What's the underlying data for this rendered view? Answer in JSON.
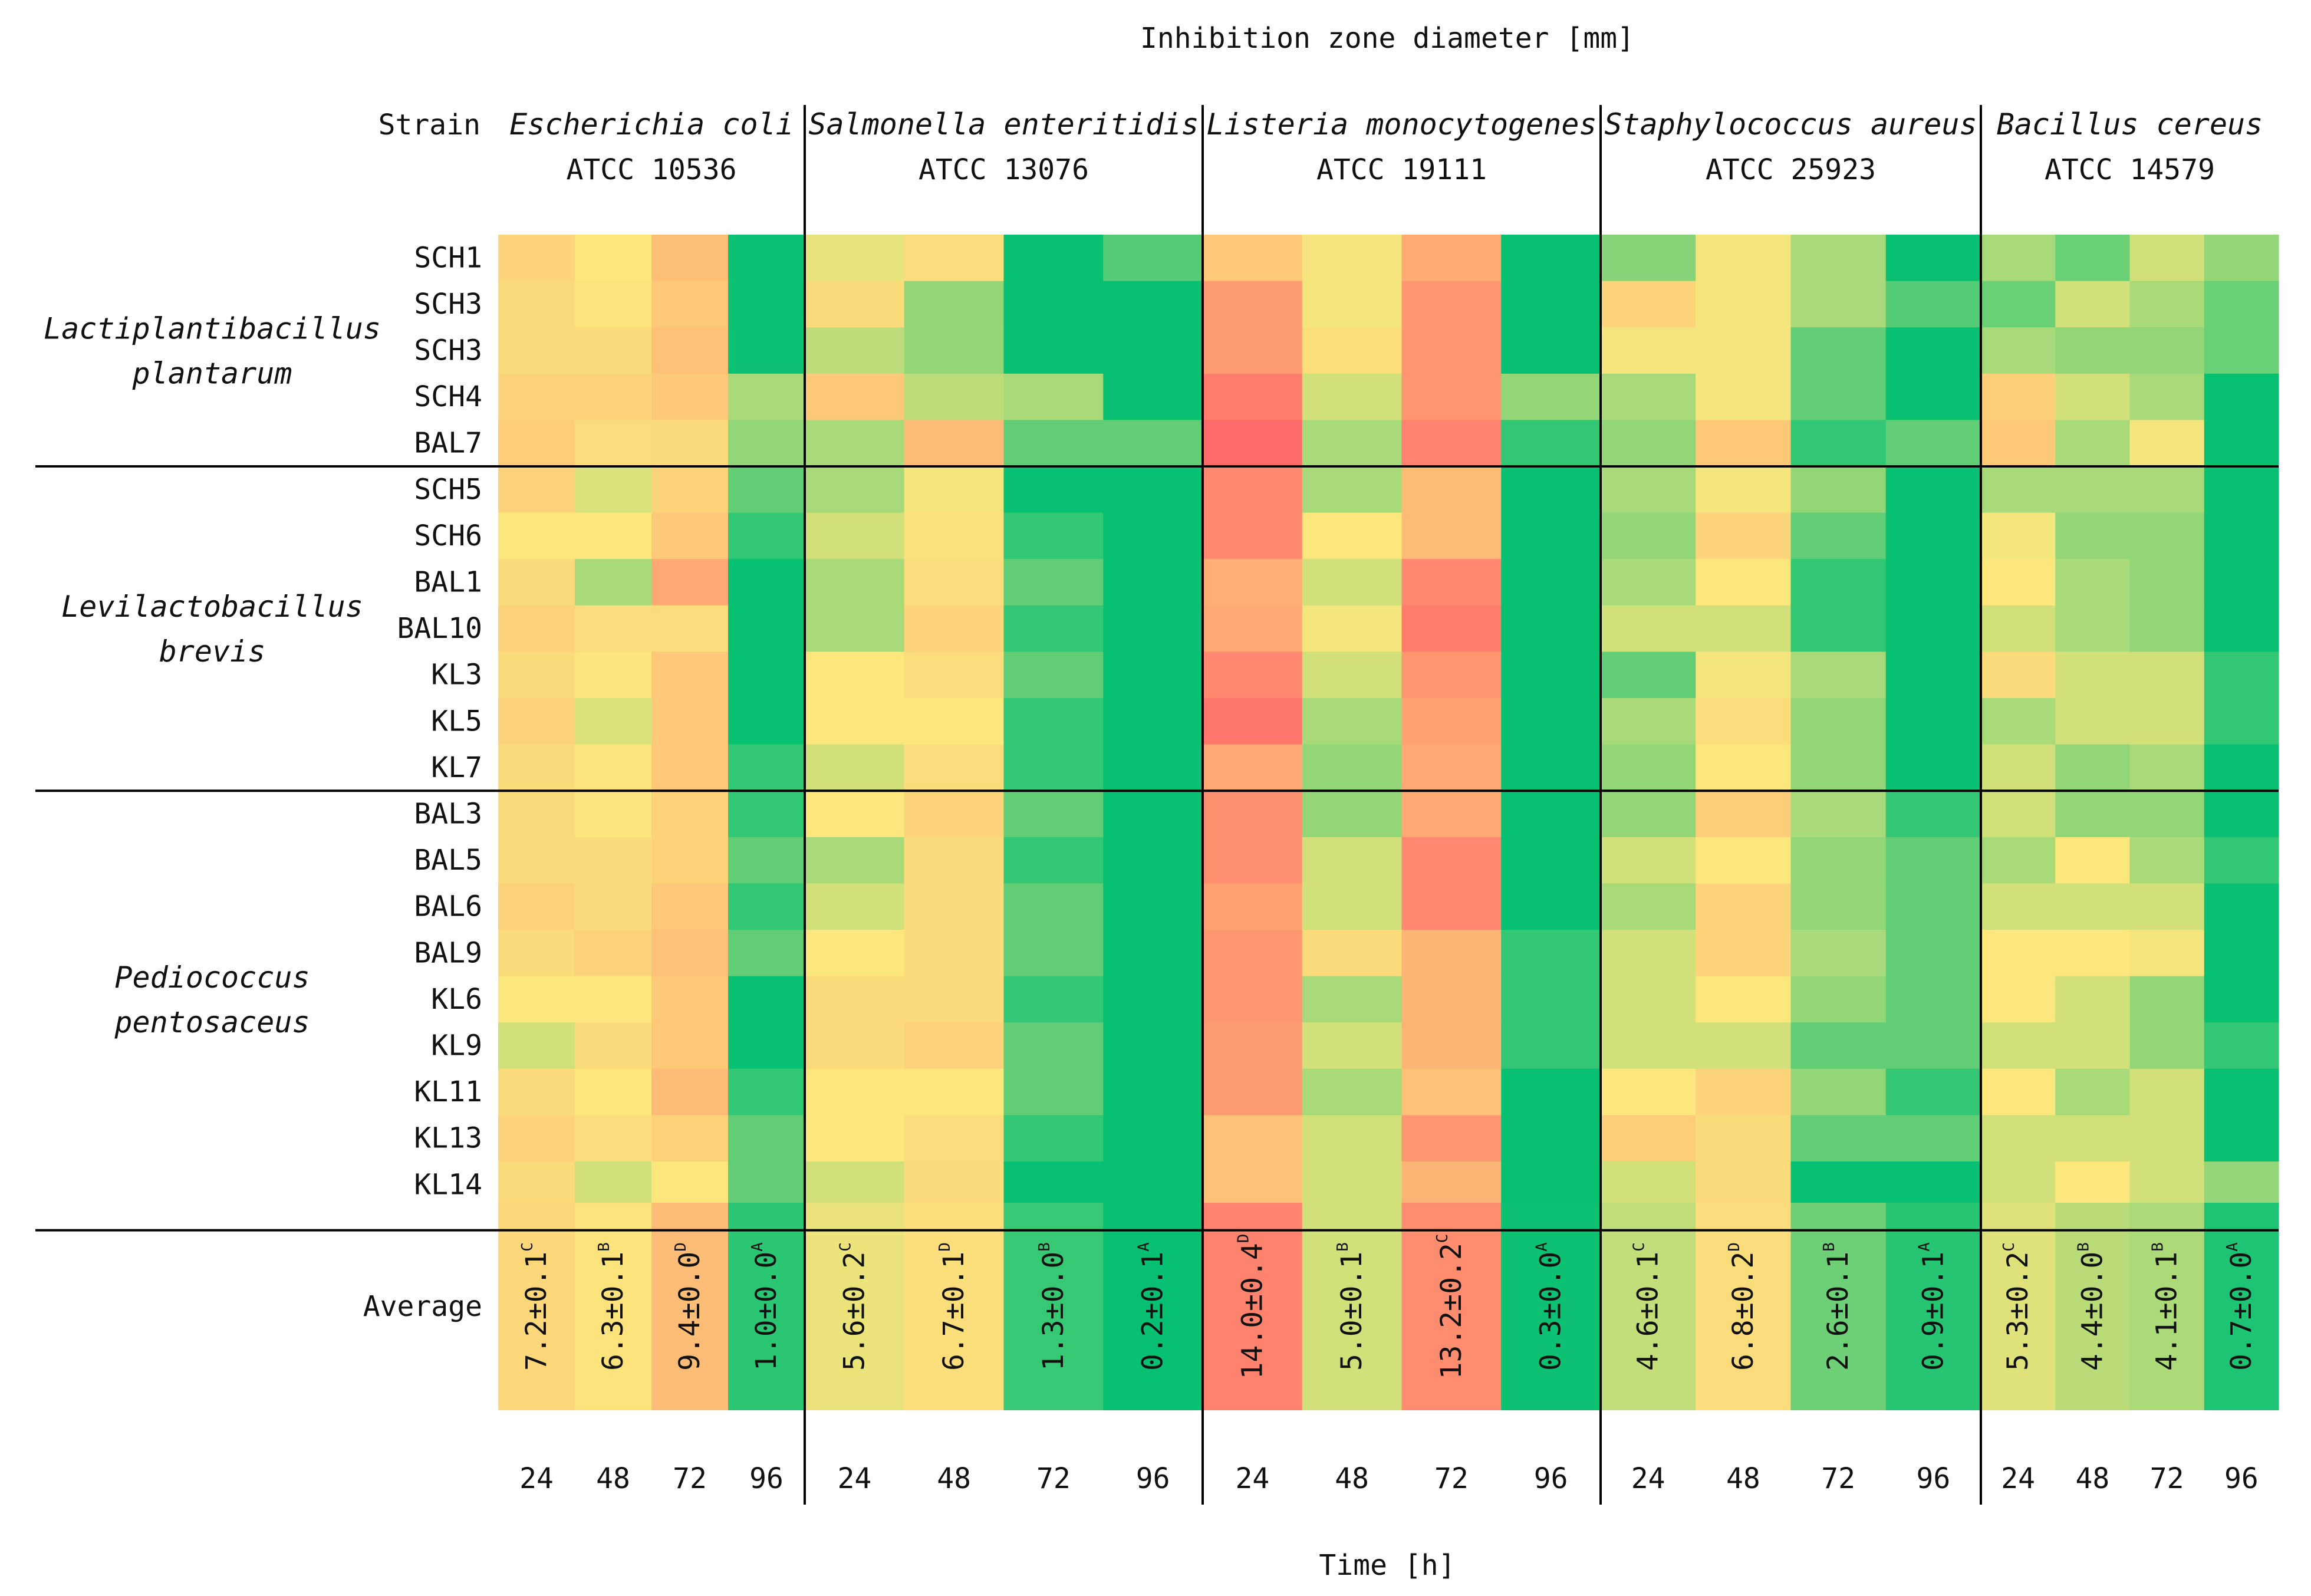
{
  "chart_data": {
    "type": "heatmap",
    "title": "Inhibition zone diameter [mm]",
    "xlabel": "Time [h]",
    "strain_header": "Strain",
    "average_label": "Average",
    "time_labels": [
      "24",
      "48",
      "72",
      "96"
    ],
    "pathogens": [
      {
        "name": "Escherichia coli",
        "code": "ATCC 10536"
      },
      {
        "name": "Salmonella enteritidis",
        "code": "ATCC 13076"
      },
      {
        "name": "Listeria monocytogenes",
        "code": "ATCC 19111"
      },
      {
        "name": "Staphylococcus aureus",
        "code": "ATCC 25923"
      },
      {
        "name": "Bacillus cereus",
        "code": "ATCC 14579"
      }
    ],
    "species_groups": [
      {
        "line1": "Lactiplantibacillus",
        "line2": "plantarum",
        "strains": [
          "SCH1",
          "SCH3",
          "SCH3",
          "SCH4",
          "BAL7"
        ]
      },
      {
        "line1": "Levilactobacillus",
        "line2": "brevis",
        "strains": [
          "SCH5",
          "SCH6",
          "BAL1",
          "BAL10",
          "KL3",
          "KL5",
          "KL7"
        ]
      },
      {
        "line1": "Pediococcus",
        "line2": "pentosaceus",
        "strains": [
          "BAL3",
          "BAL5",
          "BAL6",
          "BAL9",
          "KL6",
          "KL9",
          "KL11",
          "KL13",
          "KL14"
        ]
      }
    ],
    "color_scale": {
      "low": "#00bf72",
      "mid": "#fce77c",
      "high": "#ff6a6a"
    },
    "value_range": [
      0,
      16
    ],
    "values": [
      [
        7.5,
        6.0,
        9.2,
        0.3,
        5.5,
        6.8,
        0.2,
        2.0,
        8.5,
        5.8,
        10.8,
        0.2,
        3.2,
        5.8,
        4.0,
        0.2,
        4.0,
        2.5,
        5.0,
        3.5
      ],
      [
        7.0,
        6.3,
        8.5,
        0.3,
        7.0,
        3.5,
        0.2,
        0.2,
        12.0,
        5.8,
        12.5,
        0.2,
        7.5,
        5.8,
        4.0,
        2.0,
        2.5,
        5.0,
        4.0,
        2.5
      ],
      [
        7.0,
        7.0,
        9.0,
        0.3,
        4.5,
        3.5,
        0.2,
        0.2,
        12.0,
        6.7,
        12.5,
        0.2,
        5.8,
        5.8,
        2.3,
        0.2,
        4.0,
        3.5,
        3.5,
        2.5
      ],
      [
        7.5,
        7.5,
        8.5,
        4.0,
        8.5,
        4.5,
        4.0,
        0.2,
        14.5,
        5.0,
        12.5,
        3.5,
        4.0,
        5.8,
        2.3,
        0.2,
        8.0,
        5.0,
        4.0,
        0.2
      ],
      [
        8.2,
        6.8,
        7.0,
        3.5,
        4.0,
        9.5,
        2.3,
        2.3,
        16.0,
        4.0,
        14.0,
        1.2,
        3.5,
        8.5,
        1.2,
        2.3,
        8.5,
        4.0,
        5.8,
        0.2
      ],
      [
        7.6,
        5.2,
        7.6,
        2.3,
        4.0,
        5.8,
        0.2,
        0.2,
        13.5,
        4.0,
        9.5,
        0.2,
        4.0,
        5.8,
        3.5,
        0.2,
        4.0,
        4.0,
        4.0,
        0.2
      ],
      [
        6.0,
        6.0,
        8.5,
        1.2,
        5.0,
        6.5,
        1.2,
        0.2,
        13.5,
        6.0,
        9.5,
        0.2,
        3.5,
        7.5,
        2.3,
        0.2,
        5.8,
        3.5,
        3.5,
        0.2
      ],
      [
        7.0,
        4.0,
        11.0,
        0.2,
        4.0,
        6.8,
        2.3,
        0.2,
        10.5,
        5.0,
        13.5,
        0.2,
        4.0,
        6.0,
        1.2,
        0.2,
        6.0,
        4.0,
        3.5,
        0.2
      ],
      [
        7.6,
        6.8,
        6.8,
        0.2,
        4.0,
        7.5,
        1.2,
        0.2,
        11.0,
        5.8,
        14.5,
        0.2,
        5.0,
        5.0,
        1.2,
        0.2,
        5.0,
        4.0,
        3.5,
        0.2
      ],
      [
        7.0,
        6.2,
        8.5,
        0.2,
        6.0,
        6.8,
        2.3,
        0.2,
        13.5,
        5.0,
        12.5,
        0.2,
        2.3,
        5.8,
        4.0,
        0.2,
        7.0,
        5.0,
        5.0,
        1.2
      ],
      [
        7.6,
        5.2,
        8.5,
        0.2,
        6.0,
        6.0,
        1.2,
        0.2,
        15.0,
        4.0,
        11.5,
        0.2,
        4.0,
        6.8,
        3.5,
        0.2,
        4.0,
        5.0,
        5.0,
        1.2
      ],
      [
        7.0,
        6.2,
        8.5,
        1.2,
        5.0,
        6.8,
        1.2,
        0.2,
        11.0,
        3.5,
        11.0,
        0.2,
        3.5,
        6.0,
        3.5,
        0.2,
        5.0,
        3.5,
        4.0,
        0.2
      ],
      [
        7.0,
        6.2,
        7.6,
        1.2,
        6.0,
        7.5,
        2.3,
        0.2,
        13.0,
        3.5,
        11.0,
        0.2,
        3.5,
        8.0,
        4.0,
        1.2,
        5.0,
        3.5,
        3.5,
        0.2
      ],
      [
        7.0,
        7.0,
        7.6,
        2.3,
        4.0,
        7.0,
        1.2,
        0.2,
        13.0,
        5.0,
        13.5,
        0.2,
        5.0,
        6.0,
        3.5,
        2.3,
        4.0,
        6.0,
        4.0,
        1.2
      ],
      [
        7.6,
        7.0,
        8.5,
        1.2,
        5.0,
        7.0,
        2.3,
        0.2,
        11.5,
        5.0,
        13.5,
        0.2,
        4.0,
        7.5,
        3.5,
        2.3,
        5.0,
        5.0,
        5.0,
        0.2
      ],
      [
        7.0,
        7.6,
        9.0,
        2.3,
        6.0,
        7.0,
        2.3,
        0.2,
        12.5,
        7.0,
        10.0,
        1.2,
        5.0,
        7.5,
        4.0,
        2.3,
        6.0,
        6.0,
        5.8,
        0.2
      ],
      [
        6.0,
        6.0,
        8.5,
        0.2,
        7.0,
        7.0,
        1.2,
        0.2,
        12.5,
        4.0,
        10.0,
        1.2,
        5.0,
        6.0,
        3.5,
        2.3,
        6.0,
        5.0,
        3.5,
        0.2
      ],
      [
        5.0,
        7.0,
        8.5,
        0.2,
        7.0,
        7.6,
        2.3,
        0.2,
        12.0,
        5.0,
        10.0,
        1.2,
        5.0,
        5.0,
        2.3,
        2.3,
        5.0,
        5.0,
        3.5,
        1.2
      ],
      [
        7.0,
        6.0,
        9.5,
        1.2,
        6.0,
        6.0,
        2.3,
        0.2,
        12.0,
        4.0,
        9.0,
        0.2,
        6.0,
        7.6,
        3.5,
        1.2,
        6.0,
        4.0,
        5.0,
        0.2
      ],
      [
        7.6,
        6.8,
        7.6,
        2.3,
        6.0,
        6.8,
        1.2,
        0.2,
        9.0,
        5.0,
        12.5,
        0.2,
        8.0,
        7.0,
        2.3,
        2.3,
        5.0,
        5.0,
        5.0,
        0.2
      ],
      [
        7.0,
        5.0,
        6.0,
        2.3,
        5.0,
        7.0,
        0.2,
        0.2,
        9.0,
        5.0,
        10.0,
        0.2,
        5.0,
        7.0,
        0.2,
        0.2,
        5.0,
        6.0,
        5.0,
        3.5
      ]
    ],
    "averages": [
      {
        "value": 7.2,
        "text": "7.2±0.1",
        "sup": "C"
      },
      {
        "value": 6.3,
        "text": "6.3±0.1",
        "sup": "B"
      },
      {
        "value": 9.4,
        "text": "9.4±0.0",
        "sup": "D"
      },
      {
        "value": 1.0,
        "text": "1.0±0.0",
        "sup": "A"
      },
      {
        "value": 5.6,
        "text": "5.6±0.2",
        "sup": "C"
      },
      {
        "value": 6.7,
        "text": "6.7±0.1",
        "sup": "D"
      },
      {
        "value": 1.3,
        "text": "1.3±0.0",
        "sup": "B"
      },
      {
        "value": 0.2,
        "text": "0.2±0.1",
        "sup": "A"
      },
      {
        "value": 14.0,
        "text": "14.0±0.4",
        "sup": "D"
      },
      {
        "value": 5.0,
        "text": "5.0±0.1",
        "sup": "B"
      },
      {
        "value": 13.2,
        "text": "13.2±0.2",
        "sup": "C"
      },
      {
        "value": 0.3,
        "text": "0.3±0.0",
        "sup": "A"
      },
      {
        "value": 4.6,
        "text": "4.6±0.1",
        "sup": "C"
      },
      {
        "value": 6.8,
        "text": "6.8±0.2",
        "sup": "D"
      },
      {
        "value": 2.6,
        "text": "2.6±0.1",
        "sup": "B"
      },
      {
        "value": 0.9,
        "text": "0.9±0.1",
        "sup": "A"
      },
      {
        "value": 5.3,
        "text": "5.3±0.2",
        "sup": "C"
      },
      {
        "value": 4.4,
        "text": "4.4±0.0",
        "sup": "B"
      },
      {
        "value": 4.1,
        "text": "4.1±0.1",
        "sup": "B"
      },
      {
        "value": 0.7,
        "text": "0.7±0.0",
        "sup": "A"
      }
    ]
  }
}
